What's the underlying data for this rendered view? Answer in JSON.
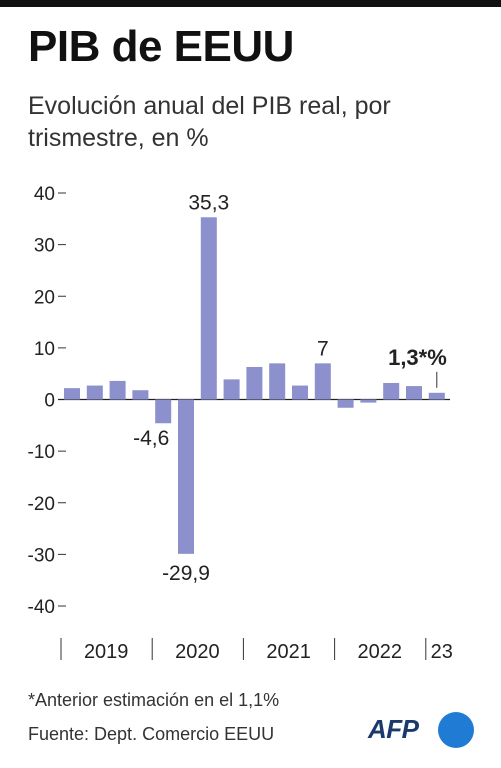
{
  "header": {
    "title": "PIB de EEUU",
    "subtitle": "Evolución anual del PIB real, por trismestre, en %"
  },
  "footer": {
    "footnote": "*Anterior estimación en el 1,1%",
    "source": "Fuente: Dept. Comercio EEUU",
    "logo_text": "AFP"
  },
  "colors": {
    "bar": "#8c91cd",
    "accent_logo": "#1f7bd4"
  },
  "chart_data": {
    "type": "bar",
    "title": "PIB de EEUU",
    "subtitle": "Evolución anual del PIB real, por trismestre, en %",
    "xlabel": "",
    "ylabel": "",
    "ylim": [
      -40,
      40
    ],
    "yticks": [
      40,
      30,
      20,
      10,
      0,
      -10,
      -20,
      -30,
      -40
    ],
    "year_groups": [
      {
        "label": "2019",
        "start": 0,
        "count": 4
      },
      {
        "label": "2020",
        "start": 4,
        "count": 4
      },
      {
        "label": "2021",
        "start": 8,
        "count": 4
      },
      {
        "label": "2022",
        "start": 12,
        "count": 4
      },
      {
        "label": "23",
        "start": 16,
        "count": 1
      }
    ],
    "values": [
      2.2,
      2.7,
      3.6,
      1.8,
      -4.6,
      -29.9,
      35.3,
      3.9,
      6.3,
      7.0,
      2.7,
      7.0,
      -1.6,
      -0.6,
      3.2,
      2.6,
      1.3
    ],
    "data_labels": [
      {
        "index": 4,
        "text": "-4,6",
        "position": "left"
      },
      {
        "index": 5,
        "text": "-29,9",
        "position": "below"
      },
      {
        "index": 6,
        "text": "35,3",
        "position": "above"
      },
      {
        "index": 11,
        "text": "7",
        "position": "above"
      },
      {
        "index": 16,
        "text": "1,3*%",
        "position": "above-left",
        "bold": true
      }
    ],
    "grid": false
  }
}
